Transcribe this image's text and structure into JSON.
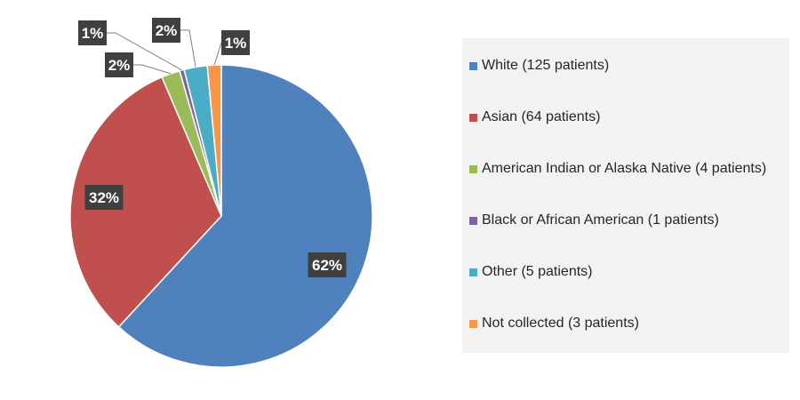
{
  "chart_data": {
    "type": "pie",
    "categories": [
      "White (125 patients)",
      "Asian (64 patients)",
      "American Indian or Alaska Native (4 patients)",
      "Black or African American (1 patients)",
      "Other (5 patients)",
      "Not collected (3 patients)"
    ],
    "values": [
      125,
      64,
      4,
      1,
      5,
      3
    ],
    "data_labels": [
      "62%",
      "32%",
      "2%",
      "1%",
      "2%",
      "1%"
    ],
    "colors": [
      "#4f81bd",
      "#c0504d",
      "#9bbb59",
      "#8064a2",
      "#4bacc6",
      "#f79646"
    ],
    "legend_position": "right",
    "start_angle_deg": 0,
    "direction": "clockwise"
  }
}
